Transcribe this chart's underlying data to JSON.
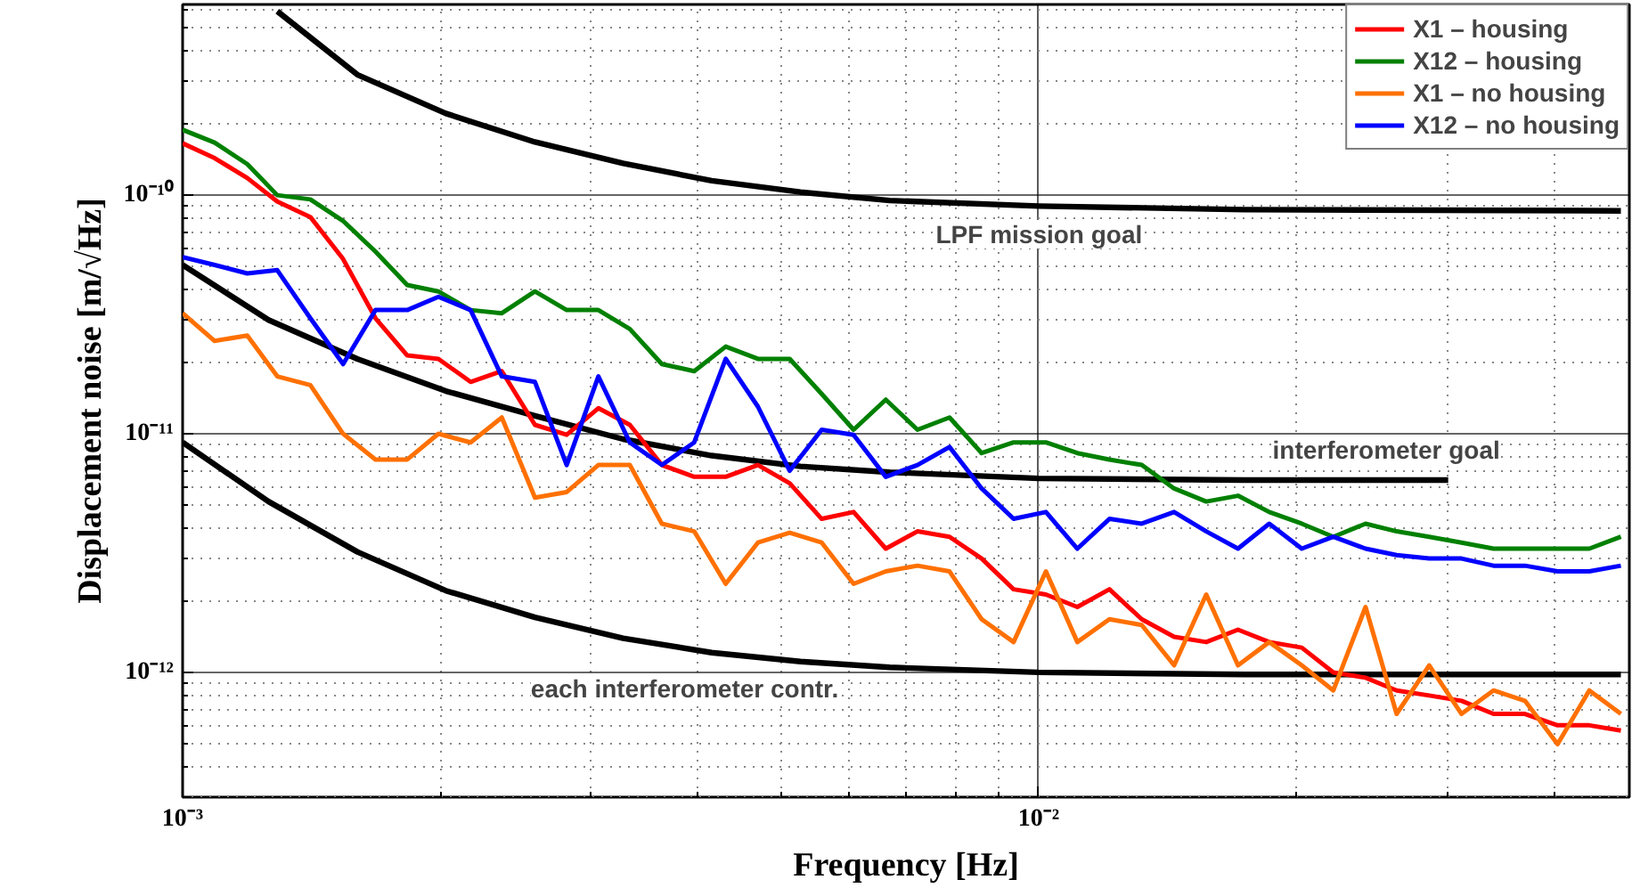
{
  "chart_data": {
    "type": "line",
    "xlabel": "Frequency [Hz]",
    "ylabel": "Displacement noise [m/√Hz]",
    "log": "xy",
    "grid": true,
    "legend": "top right",
    "line_style": "solid",
    "marker": "none",
    "xlim": [
      0.001,
      0.049
    ],
    "ylim": [
      3e-13,
      6.3e-10
    ],
    "xticks": [
      {
        "value": 0.001,
        "label": "10⁻³"
      },
      {
        "value": 0.01,
        "label": "10⁻²"
      }
    ],
    "yticks": [
      {
        "value": 1e-12,
        "label": "10⁻¹²"
      },
      {
        "value": 1e-11,
        "label": "10⁻¹¹"
      },
      {
        "value": 1e-10,
        "label": "10⁻¹⁰"
      }
    ],
    "x": [
      0.001,
      0.00109,
      0.00119,
      0.00129,
      0.00141,
      0.00154,
      0.00168,
      0.00183,
      0.00199,
      0.00217,
      0.00236,
      0.00258,
      0.00281,
      0.00306,
      0.00333,
      0.00363,
      0.00396,
      0.00431,
      0.0047,
      0.00512,
      0.00558,
      0.00608,
      0.00663,
      0.00722,
      0.00787,
      0.00858,
      0.00935,
      0.0102,
      0.0111,
      0.0121,
      0.0132,
      0.0144,
      0.0157,
      0.0171,
      0.0186,
      0.0203,
      0.0221,
      0.0241,
      0.0262,
      0.0286,
      0.0312,
      0.034,
      0.037,
      0.0404,
      0.044,
      0.0479
    ],
    "series": [
      {
        "x": [
          0.00129,
          0.0016,
          0.00203,
          0.00258,
          0.00327,
          0.00415,
          0.00527,
          0.0067,
          0.01,
          0.0174,
          0.0479
        ],
        "color": "#000000",
        "values": [
          5.9e-10,
          3.2e-10,
          2.2e-10,
          1.67e-10,
          1.36e-10,
          1.15e-10,
          1.03e-10,
          9.5e-11,
          9e-11,
          8.7e-11,
          8.6e-11
        ]
      },
      {
        "x": [
          0.001,
          0.00126,
          0.0016,
          0.00203,
          0.00258,
          0.00327,
          0.00415,
          0.00527,
          0.0067,
          0.01,
          0.0174,
          0.0301
        ],
        "color": "#000000",
        "values": [
          5.1e-11,
          3e-11,
          2.06e-11,
          1.51e-11,
          1.19e-11,
          9.5e-12,
          8.1e-12,
          7.3e-12,
          6.9e-12,
          6.5e-12,
          6.4e-12,
          6.4e-12
        ]
      },
      {
        "x": [
          0.001,
          0.00126,
          0.0016,
          0.00203,
          0.00258,
          0.00327,
          0.00415,
          0.00527,
          0.0067,
          0.01,
          0.0174,
          0.0479
        ],
        "color": "#000000",
        "values": [
          9.2e-12,
          5.2e-12,
          3.2e-12,
          2.2e-12,
          1.7e-12,
          1.39e-12,
          1.21e-12,
          1.11e-12,
          1.05e-12,
          1e-12,
          9.8e-13,
          9.8e-13
        ]
      },
      {
        "name": "X1 – housing",
        "color": "#ff0000",
        "values": [
          1.65e-10,
          1.43e-10,
          1.18e-10,
          9.4e-11,
          8.1e-11,
          5.4e-11,
          3.05e-11,
          2.13e-11,
          2.06e-11,
          1.65e-11,
          1.83e-11,
          1.09e-11,
          9.9e-12,
          1.28e-11,
          1.09e-11,
          7.4e-12,
          6.6e-12,
          6.6e-12,
          7.4e-12,
          6.2e-12,
          4.4e-12,
          4.7e-12,
          3.3e-12,
          3.9e-12,
          3.7e-12,
          3e-12,
          2.23e-12,
          2.12e-12,
          1.88e-12,
          2.23e-12,
          1.67e-12,
          1.41e-12,
          1.34e-12,
          1.51e-12,
          1.34e-12,
          1.27e-12,
          1e-12,
          9.5e-13,
          8.4e-13,
          8e-13,
          7.6e-13,
          6.7e-13,
          6.7e-13,
          6e-13,
          6e-13,
          5.7e-13
        ]
      },
      {
        "name": "X12 – housing",
        "color": "#008000",
        "values": [
          1.88e-10,
          1.66e-10,
          1.35e-10,
          1e-10,
          9.6e-11,
          7.8e-11,
          5.8e-11,
          4.2e-11,
          3.95e-11,
          3.3e-11,
          3.2e-11,
          3.95e-11,
          3.3e-11,
          3.3e-11,
          2.75e-11,
          1.96e-11,
          1.83e-11,
          2.32e-11,
          2.06e-11,
          2.06e-11,
          1.47e-11,
          1.04e-11,
          1.39e-11,
          1.04e-11,
          1.17e-11,
          8.3e-12,
          9.2e-12,
          9.2e-12,
          8.3e-12,
          7.8e-12,
          7.4e-12,
          5.9e-12,
          5.2e-12,
          5.5e-12,
          4.7e-12,
          4.2e-12,
          3.7e-12,
          4.2e-12,
          3.9e-12,
          3.7e-12,
          3.5e-12,
          3.3e-12,
          3.3e-12,
          3.3e-12,
          3.3e-12,
          3.7e-12
        ]
      },
      {
        "name": "X1 – no housing",
        "color": "#ff7000",
        "values": [
          3.2e-11,
          2.45e-11,
          2.58e-11,
          1.74e-11,
          1.6e-11,
          1e-11,
          7.8e-12,
          7.8e-12,
          1e-11,
          9.2e-12,
          1.17e-11,
          5.4e-12,
          5.7e-12,
          7.4e-12,
          7.4e-12,
          4.2e-12,
          3.9e-12,
          2.35e-12,
          3.5e-12,
          3.85e-12,
          3.5e-12,
          2.35e-12,
          2.65e-12,
          2.8e-12,
          2.65e-12,
          1.67e-12,
          1.34e-12,
          2.65e-12,
          1.34e-12,
          1.67e-12,
          1.58e-12,
          1.07e-12,
          2.12e-12,
          1.07e-12,
          1.34e-12,
          1.07e-12,
          8.4e-13,
          1.88e-12,
          6.7e-13,
          1.07e-12,
          6.7e-13,
          8.4e-13,
          7.6e-13,
          5e-13,
          8.4e-13,
          6.7e-13
        ]
      },
      {
        "name": "X12 – no housing",
        "color": "#0000ff",
        "values": [
          5.5e-11,
          5.1e-11,
          4.7e-11,
          4.85e-11,
          3.05e-11,
          1.96e-11,
          3.3e-11,
          3.3e-11,
          3.75e-11,
          3.3e-11,
          1.74e-11,
          1.65e-11,
          7.4e-12,
          1.74e-11,
          9.2e-12,
          7.4e-12,
          9.2e-12,
          2.06e-11,
          1.3e-11,
          7e-12,
          1.04e-11,
          9.9e-12,
          6.6e-12,
          7.4e-12,
          8.8e-12,
          5.9e-12,
          4.4e-12,
          4.7e-12,
          3.3e-12,
          4.4e-12,
          4.2e-12,
          4.7e-12,
          3.9e-12,
          3.3e-12,
          4.2e-12,
          3.3e-12,
          3.7e-12,
          3.3e-12,
          3.1e-12,
          3e-12,
          3e-12,
          2.8e-12,
          2.8e-12,
          2.65e-12,
          2.65e-12,
          2.8e-12
        ]
      }
    ],
    "annotations": [
      "LPF mission goal",
      "interferometer goal",
      "each interferometer contr."
    ]
  }
}
